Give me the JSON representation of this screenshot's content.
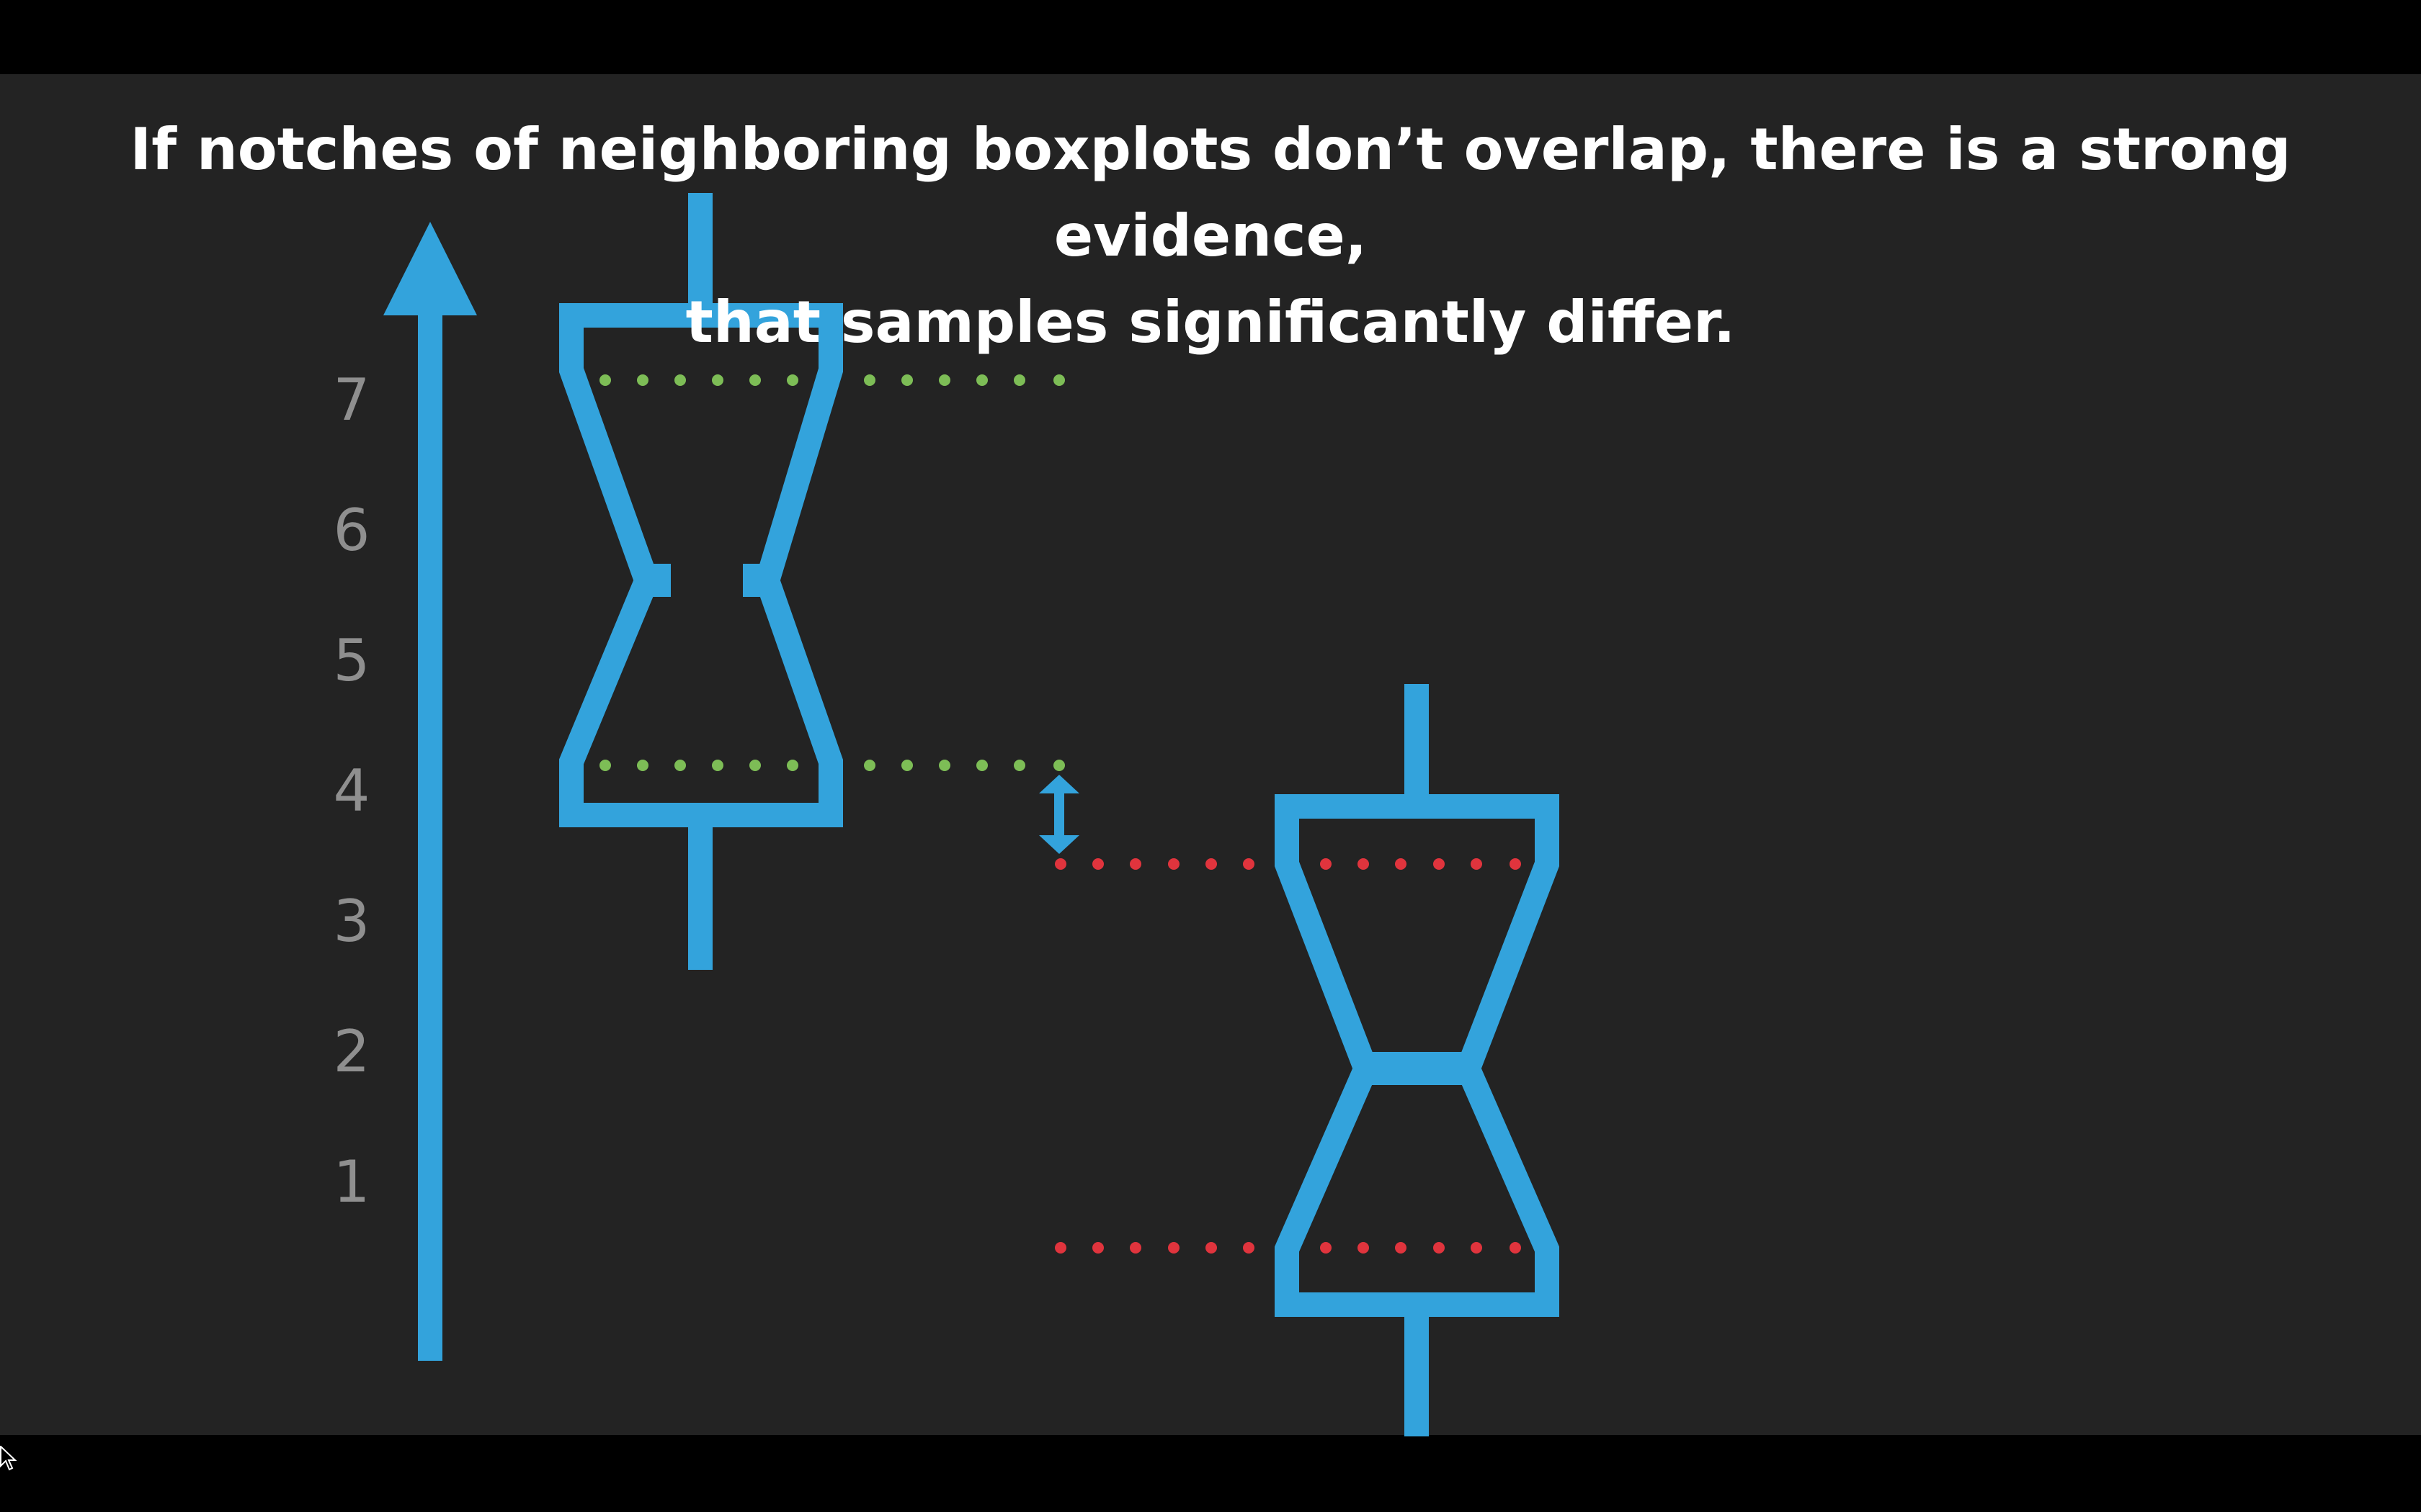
{
  "title": {
    "line1": "If notches of neighboring boxplots don’t overlap, there is a strong evidence,",
    "line2": "that samples significantly differ."
  },
  "axis": {
    "ticks": [
      "1",
      "2",
      "3",
      "4",
      "5",
      "6",
      "7"
    ]
  },
  "colors": {
    "background": "#232323",
    "letterbox": "#000000",
    "boxplot": "#33a3dc",
    "notch_dots_left": "#7dbd56",
    "notch_dots_right": "#e0343d",
    "tick_label": "#8f8f8f",
    "title": "#ffffff"
  },
  "icons": {
    "axis": "up-arrow-icon",
    "gap": "double-arrow-icon",
    "pointer": "mouse-cursor-icon"
  }
}
